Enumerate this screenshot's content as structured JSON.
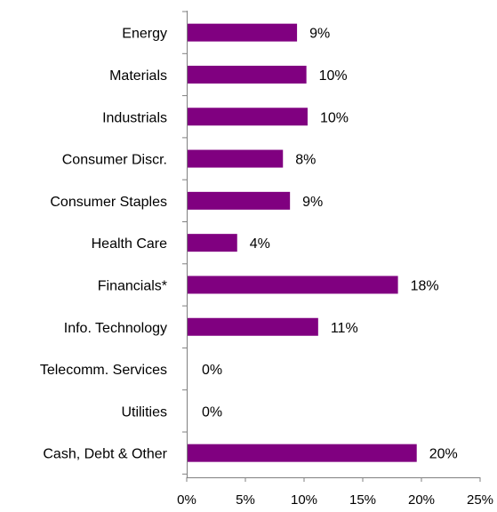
{
  "chart_data": {
    "type": "bar",
    "orientation": "horizontal",
    "categories": [
      "Energy",
      "Materials",
      "Industrials",
      "Consumer Discr.",
      "Consumer Staples",
      "Health Care",
      "Financials*",
      "Info. Technology",
      "Telecomm. Services",
      "Utilities",
      "Cash, Debt & Other"
    ],
    "values": [
      9.4,
      10.2,
      10.3,
      8.2,
      8.8,
      4.3,
      18.0,
      11.2,
      0,
      0,
      19.6
    ],
    "data_labels": [
      "9%",
      "10%",
      "10%",
      "8%",
      "9%",
      "4%",
      "18%",
      "11%",
      "0%",
      "0%",
      "20%"
    ],
    "xlim": [
      0,
      25
    ],
    "x_ticks": [
      0,
      5,
      10,
      15,
      20,
      25
    ],
    "x_tick_labels": [
      "0%",
      "5%",
      "10%",
      "15%",
      "20%",
      "25%"
    ],
    "bar_color": "#800080",
    "grid": false,
    "legend": "none"
  }
}
